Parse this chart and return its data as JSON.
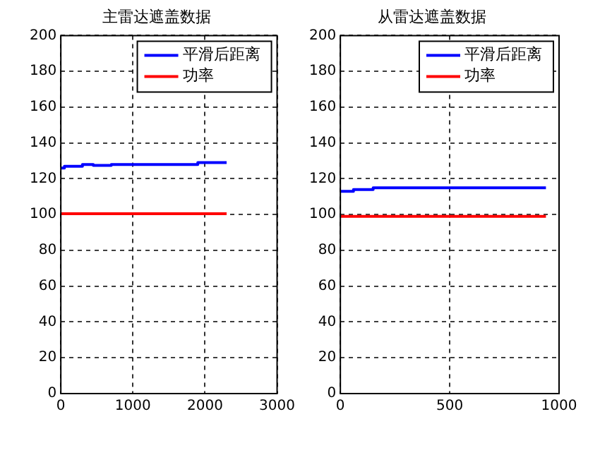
{
  "chart_data": [
    {
      "type": "line",
      "title": "主雷达遮盖数据",
      "xlim": [
        0,
        3000
      ],
      "xticks": [
        0,
        1000,
        2000,
        3000
      ],
      "ylim": [
        0,
        200
      ],
      "yticks": [
        0,
        20,
        40,
        60,
        80,
        100,
        120,
        140,
        160,
        180,
        200
      ],
      "grid": true,
      "legend": "top right",
      "series": [
        {
          "name": "平滑后距离",
          "color": "#0000ff",
          "x": [
            0,
            50,
            50,
            300,
            300,
            450,
            450,
            700,
            700,
            1900,
            1900,
            2300
          ],
          "values": [
            126,
            126,
            127,
            127,
            128,
            128,
            127.5,
            127.5,
            128,
            128,
            129,
            129
          ]
        },
        {
          "name": "功率",
          "color": "#ff0000",
          "x": [
            0,
            2300
          ],
          "values": [
            100.5,
            100.5
          ]
        }
      ]
    },
    {
      "type": "line",
      "title": "从雷达遮盖数据",
      "xlim": [
        0,
        1000
      ],
      "xticks": [
        0,
        500,
        1000
      ],
      "ylim": [
        0,
        200
      ],
      "yticks": [
        0,
        20,
        40,
        60,
        80,
        100,
        120,
        140,
        160,
        180,
        200
      ],
      "grid": true,
      "legend": "top right",
      "series": [
        {
          "name": "平滑后距离",
          "color": "#0000ff",
          "x": [
            0,
            60,
            60,
            150,
            150,
            940
          ],
          "values": [
            113,
            113,
            114,
            114,
            115,
            115
          ]
        },
        {
          "name": "功率",
          "color": "#ff0000",
          "x": [
            0,
            940
          ],
          "values": [
            99,
            99
          ]
        }
      ]
    }
  ]
}
